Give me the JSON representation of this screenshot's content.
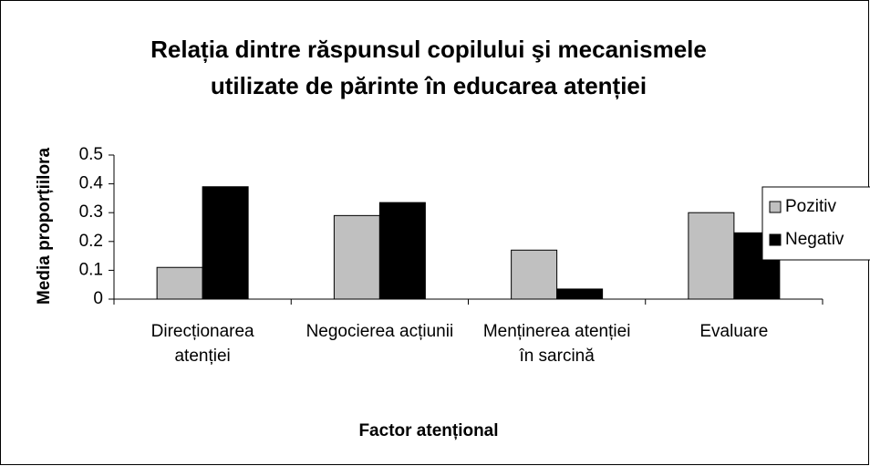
{
  "chart_data": {
    "type": "bar",
    "title": "Relația dintre răspunsul copilului şi mecanismele utilizate de părinte în educarea atenției",
    "x_label": "Factor atențional",
    "y_label": "Media proporțiilora",
    "categories": [
      "Direcționarea atenției",
      "Negocierea acțiunii",
      "Menținerea atenției în sarcină",
      "Evaluare"
    ],
    "series": [
      {
        "name": "Pozitiv",
        "color": "#c0c0c0",
        "values": [
          0.11,
          0.29,
          0.17,
          0.3
        ]
      },
      {
        "name": "Negativ",
        "color": "#000000",
        "values": [
          0.39,
          0.335,
          0.035,
          0.23
        ]
      }
    ],
    "ylim": [
      0,
      0.5
    ],
    "yticks": [
      0,
      0.1,
      0.2,
      0.3,
      0.4,
      0.5
    ],
    "grid": false,
    "legend": "right"
  }
}
